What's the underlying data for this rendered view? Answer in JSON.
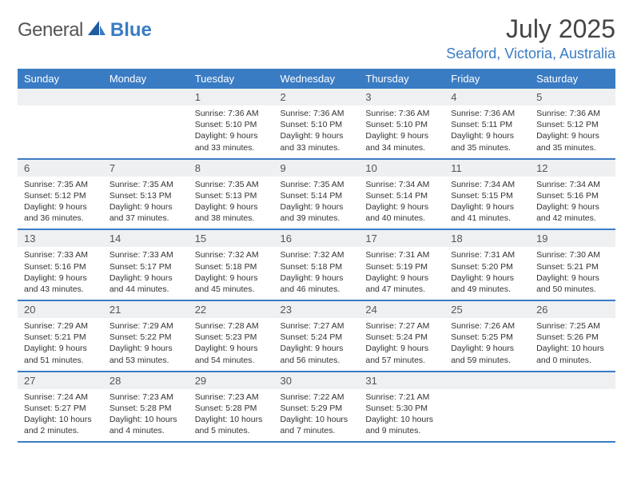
{
  "logo": {
    "text_gray": "General",
    "text_blue": "Blue",
    "icon_fill": "#1f5b9e"
  },
  "header": {
    "month_title": "July 2025",
    "location": "Seaford, Victoria, Australia"
  },
  "columns": [
    "Sunday",
    "Monday",
    "Tuesday",
    "Wednesday",
    "Thursday",
    "Friday",
    "Saturday"
  ],
  "colors": {
    "header_bg": "#3a7cc4",
    "header_fg": "#ffffff",
    "daynum_bg": "#eef0f2",
    "border": "#3a7cc4",
    "text": "#333333"
  },
  "weeks": [
    [
      null,
      null,
      {
        "n": "1",
        "sunrise": "7:36 AM",
        "sunset": "5:10 PM",
        "dl": "9 hours and 33 minutes."
      },
      {
        "n": "2",
        "sunrise": "7:36 AM",
        "sunset": "5:10 PM",
        "dl": "9 hours and 33 minutes."
      },
      {
        "n": "3",
        "sunrise": "7:36 AM",
        "sunset": "5:10 PM",
        "dl": "9 hours and 34 minutes."
      },
      {
        "n": "4",
        "sunrise": "7:36 AM",
        "sunset": "5:11 PM",
        "dl": "9 hours and 35 minutes."
      },
      {
        "n": "5",
        "sunrise": "7:36 AM",
        "sunset": "5:12 PM",
        "dl": "9 hours and 35 minutes."
      }
    ],
    [
      {
        "n": "6",
        "sunrise": "7:35 AM",
        "sunset": "5:12 PM",
        "dl": "9 hours and 36 minutes."
      },
      {
        "n": "7",
        "sunrise": "7:35 AM",
        "sunset": "5:13 PM",
        "dl": "9 hours and 37 minutes."
      },
      {
        "n": "8",
        "sunrise": "7:35 AM",
        "sunset": "5:13 PM",
        "dl": "9 hours and 38 minutes."
      },
      {
        "n": "9",
        "sunrise": "7:35 AM",
        "sunset": "5:14 PM",
        "dl": "9 hours and 39 minutes."
      },
      {
        "n": "10",
        "sunrise": "7:34 AM",
        "sunset": "5:14 PM",
        "dl": "9 hours and 40 minutes."
      },
      {
        "n": "11",
        "sunrise": "7:34 AM",
        "sunset": "5:15 PM",
        "dl": "9 hours and 41 minutes."
      },
      {
        "n": "12",
        "sunrise": "7:34 AM",
        "sunset": "5:16 PM",
        "dl": "9 hours and 42 minutes."
      }
    ],
    [
      {
        "n": "13",
        "sunrise": "7:33 AM",
        "sunset": "5:16 PM",
        "dl": "9 hours and 43 minutes."
      },
      {
        "n": "14",
        "sunrise": "7:33 AM",
        "sunset": "5:17 PM",
        "dl": "9 hours and 44 minutes."
      },
      {
        "n": "15",
        "sunrise": "7:32 AM",
        "sunset": "5:18 PM",
        "dl": "9 hours and 45 minutes."
      },
      {
        "n": "16",
        "sunrise": "7:32 AM",
        "sunset": "5:18 PM",
        "dl": "9 hours and 46 minutes."
      },
      {
        "n": "17",
        "sunrise": "7:31 AM",
        "sunset": "5:19 PM",
        "dl": "9 hours and 47 minutes."
      },
      {
        "n": "18",
        "sunrise": "7:31 AM",
        "sunset": "5:20 PM",
        "dl": "9 hours and 49 minutes."
      },
      {
        "n": "19",
        "sunrise": "7:30 AM",
        "sunset": "5:21 PM",
        "dl": "9 hours and 50 minutes."
      }
    ],
    [
      {
        "n": "20",
        "sunrise": "7:29 AM",
        "sunset": "5:21 PM",
        "dl": "9 hours and 51 minutes."
      },
      {
        "n": "21",
        "sunrise": "7:29 AM",
        "sunset": "5:22 PM",
        "dl": "9 hours and 53 minutes."
      },
      {
        "n": "22",
        "sunrise": "7:28 AM",
        "sunset": "5:23 PM",
        "dl": "9 hours and 54 minutes."
      },
      {
        "n": "23",
        "sunrise": "7:27 AM",
        "sunset": "5:24 PM",
        "dl": "9 hours and 56 minutes."
      },
      {
        "n": "24",
        "sunrise": "7:27 AM",
        "sunset": "5:24 PM",
        "dl": "9 hours and 57 minutes."
      },
      {
        "n": "25",
        "sunrise": "7:26 AM",
        "sunset": "5:25 PM",
        "dl": "9 hours and 59 minutes."
      },
      {
        "n": "26",
        "sunrise": "7:25 AM",
        "sunset": "5:26 PM",
        "dl": "10 hours and 0 minutes."
      }
    ],
    [
      {
        "n": "27",
        "sunrise": "7:24 AM",
        "sunset": "5:27 PM",
        "dl": "10 hours and 2 minutes."
      },
      {
        "n": "28",
        "sunrise": "7:23 AM",
        "sunset": "5:28 PM",
        "dl": "10 hours and 4 minutes."
      },
      {
        "n": "29",
        "sunrise": "7:23 AM",
        "sunset": "5:28 PM",
        "dl": "10 hours and 5 minutes."
      },
      {
        "n": "30",
        "sunrise": "7:22 AM",
        "sunset": "5:29 PM",
        "dl": "10 hours and 7 minutes."
      },
      {
        "n": "31",
        "sunrise": "7:21 AM",
        "sunset": "5:30 PM",
        "dl": "10 hours and 9 minutes."
      },
      null,
      null
    ]
  ],
  "labels": {
    "sunrise": "Sunrise:",
    "sunset": "Sunset:",
    "daylight": "Daylight:"
  }
}
